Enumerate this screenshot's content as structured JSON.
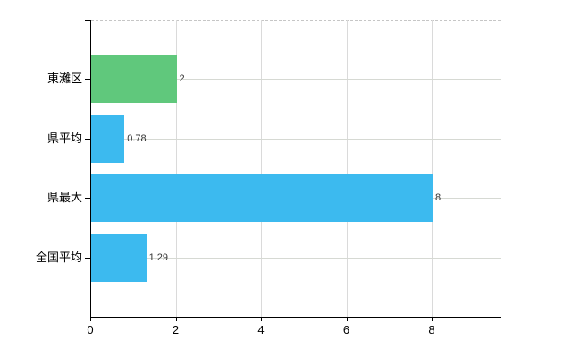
{
  "chart_data": {
    "type": "bar",
    "orientation": "horizontal",
    "title": "",
    "xlabel": "",
    "ylabel": "",
    "categories": [
      "東灘区",
      "県平均",
      "県最大",
      "全国平均"
    ],
    "values": [
      2,
      0.78,
      8,
      1.29
    ],
    "value_labels": [
      "2",
      "0.78",
      "8",
      "1.29"
    ],
    "bar_colors": [
      "#60c87c",
      "#3cbaef",
      "#3cbaef",
      "#3cbaef"
    ],
    "x_ticks": [
      "0",
      "2",
      "4",
      "6",
      "8"
    ],
    "x_tick_values": [
      0,
      2,
      4,
      6,
      8
    ],
    "xlim": [
      0,
      9.6
    ],
    "grid": true,
    "legend": false,
    "colors": {
      "highlight_bar": "#60c87c",
      "default_bar": "#3cbaef",
      "grid": "#d6d9d3",
      "axis": "#000000",
      "background": "#ffffff",
      "value_text": "#333333"
    }
  }
}
